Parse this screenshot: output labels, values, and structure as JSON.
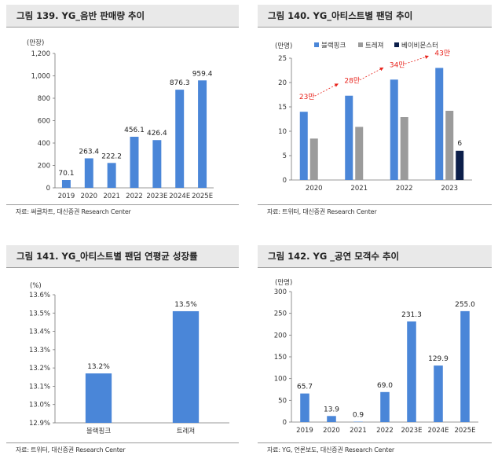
{
  "panels": [
    {
      "title": "그림 139. YG_음반 판매량 추이",
      "source": "자료: 써클차트, 대신증권 Research Center",
      "chart_data": {
        "type": "bar",
        "unit_label": "(만장)",
        "categories": [
          "2019",
          "2020",
          "2021",
          "2022",
          "2023E",
          "2024E",
          "2025E"
        ],
        "values": [
          70.1,
          263.4,
          222.2,
          456.1,
          426.4,
          876.3,
          959.4
        ],
        "data_labels": [
          "70.1",
          "263.4",
          "222.2",
          "456.1",
          "426.4",
          "876.3",
          "959.4"
        ],
        "ylim": [
          0,
          1200
        ],
        "yticks": [
          0,
          200,
          400,
          600,
          800,
          1000,
          1200
        ],
        "ytick_labels": [
          "0",
          "200",
          "400",
          "600",
          "800",
          "1,000",
          "1,200"
        ],
        "color": "#4a86d8"
      }
    },
    {
      "title": "그림 140. YG_아티스트별 팬덤 추이",
      "source": "자료: 트위터, 대신증권 Research Center",
      "chart_data": {
        "type": "bar",
        "unit_label": "(만명)",
        "categories": [
          "2020",
          "2021",
          "2022",
          "2023"
        ],
        "series": [
          {
            "name": "블랙핑크",
            "color": "#4a86d8",
            "values": [
              14,
              17.3,
              20.6,
              23
            ]
          },
          {
            "name": "트레져",
            "color": "#9b9b9b",
            "values": [
              8.5,
              10.9,
              12.9,
              14.2
            ]
          },
          {
            "name": "베이비몬스터",
            "color": "#0c1f4a",
            "values": [
              null,
              null,
              null,
              6
            ]
          }
        ],
        "value_labels": [
          {
            "series": 2,
            "index": 3,
            "text": "6"
          }
        ],
        "annotations": [
          "23만",
          "28만",
          "34만",
          "43만"
        ],
        "annotation_color": "#e8231c",
        "ylim": [
          0,
          25
        ],
        "yticks": [
          0,
          5,
          10,
          15,
          20,
          25
        ],
        "ytick_labels": [
          "0",
          "5",
          "10",
          "15",
          "20",
          "25"
        ]
      }
    },
    {
      "title": "그림 141. YG_아티스트별 팬덤 연평균 성장률",
      "source": "자료: 트위터, 대신증권 Research Center",
      "chart_data": {
        "type": "bar",
        "unit_label": "(%)",
        "categories": [
          "블랙핑크",
          "트레져"
        ],
        "values": [
          13.17,
          13.51
        ],
        "data_labels": [
          "13.2%",
          "13.5%"
        ],
        "ylim": [
          12.9,
          13.6
        ],
        "yticks": [
          12.9,
          13.0,
          13.1,
          13.2,
          13.3,
          13.4,
          13.5,
          13.6
        ],
        "ytick_labels": [
          "12.9%",
          "13.0%",
          "13.1%",
          "13.2%",
          "13.3%",
          "13.4%",
          "13.5%",
          "13.6%"
        ],
        "color": "#4a86d8"
      }
    },
    {
      "title": "그림 142. YG _공연 모객수 추이",
      "source": "자료: YG, 언론보도, 대신증권 Research Center",
      "chart_data": {
        "type": "bar",
        "unit_label": "(만명)",
        "categories": [
          "2019",
          "2020",
          "2021",
          "2022",
          "2023E",
          "2024E",
          "2025E"
        ],
        "values": [
          65.7,
          13.9,
          0.9,
          69.0,
          231.3,
          129.9,
          255.0
        ],
        "data_labels": [
          "65.7",
          "13.9",
          "0.9",
          "69.0",
          "231.3",
          "129.9",
          "255.0"
        ],
        "ylim": [
          0,
          300
        ],
        "yticks": [
          0,
          50,
          100,
          150,
          200,
          250,
          300
        ],
        "ytick_labels": [
          "0",
          "50",
          "100",
          "150",
          "200",
          "250",
          "300"
        ],
        "color": "#4a86d8"
      }
    }
  ]
}
